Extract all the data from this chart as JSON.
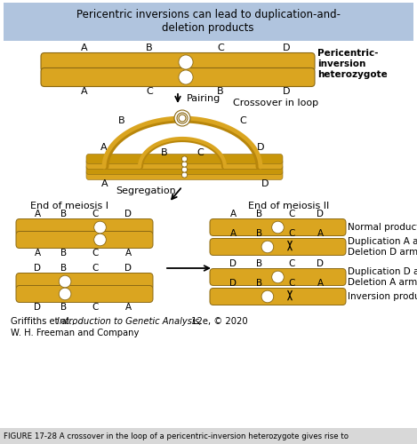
{
  "title": "Pericentric inversions can lead to duplication-and-\ndeletion products",
  "title_bg": "#b0c4de",
  "bg_color": "#ffffff",
  "chrom_color": "#DAA520",
  "chrom_color_dark": "#B8860B",
  "ec_color": "#8B6914",
  "text_color": "#000000",
  "label_pericentric": "Pericentric-\ninversion\nheterozygote",
  "label_pairing": "Pairing",
  "label_crossover": "Crossover in loop",
  "label_segregation": "Segregation",
  "label_meiosis1": "End of meiosis I",
  "label_meiosis2": "End of meiosis II",
  "label_normal": "Normal product",
  "label_dup_a": "Duplication A arm\nDeletion D arm",
  "label_dup_d": "Duplication D arm\nDeletion A arm",
  "label_inversion": "Inversion product",
  "cite_plain": "Griffiths et al., ",
  "cite_italic": "Introduction to Genetic Analysis,",
  "cite_rest": " 12e, © 2020",
  "cite_line2": "W. H. Freeman and Company",
  "figure_caption": "IGURE 17-28 A crossover in the loop of a pericentric-inversion heterozygote gives rise to"
}
